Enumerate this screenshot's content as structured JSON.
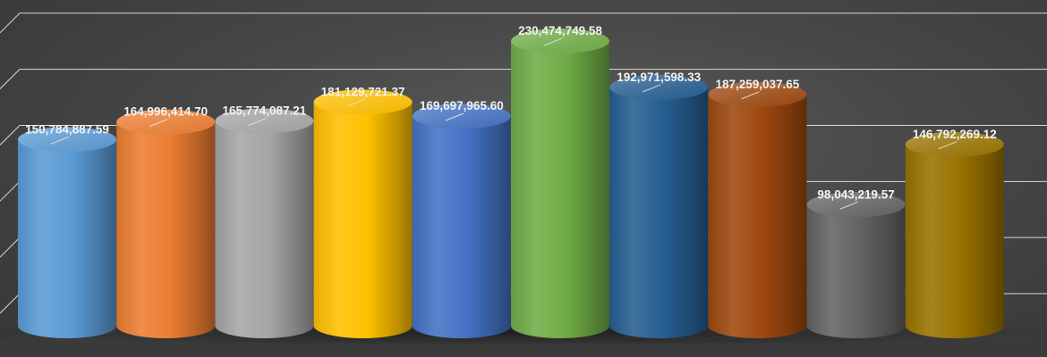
{
  "chart_data": {
    "type": "bar",
    "style": "3d-cylinder",
    "categories": [
      "",
      "",
      "",
      "",
      "",
      "",
      "",
      "",
      "",
      ""
    ],
    "series": [
      {
        "values": [
          150784887.59,
          164996414.7,
          165774087.21,
          181129721.37,
          169697965.6,
          230474749.58,
          192971598.33,
          187259037.65,
          98043219.57,
          146792269.12
        ],
        "data_labels": [
          "150,784,887.59",
          "164,996,414.70",
          "165,774,087.21",
          "181,129,721.37",
          "169,697,965.60",
          "230,474,749.58",
          "192,971,598.33",
          "187,259,037.65",
          "98,043,219.57",
          "146,792,269.12"
        ]
      }
    ],
    "colors": [
      "#5b9bd5",
      "#ed7d31",
      "#a5a5a5",
      "#ffc000",
      "#4472c4",
      "#70ad47",
      "#255e91",
      "#9e480e",
      "#636363",
      "#997300"
    ],
    "ylim": [
      0,
      250000000
    ],
    "grid": true,
    "legend": "none",
    "title": "",
    "xlabel": "",
    "ylabel": ""
  }
}
